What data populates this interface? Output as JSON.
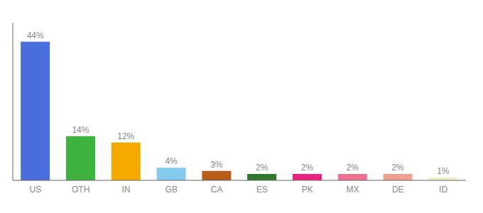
{
  "chart_data": {
    "type": "bar",
    "categories": [
      "US",
      "OTH",
      "IN",
      "GB",
      "CA",
      "ES",
      "PK",
      "MX",
      "DE",
      "ID"
    ],
    "values": [
      44,
      14,
      12,
      4,
      3,
      2,
      2,
      2,
      2,
      1
    ],
    "value_labels": [
      "44%",
      "14%",
      "12%",
      "4%",
      "3%",
      "2%",
      "2%",
      "2%",
      "2%",
      "1%"
    ],
    "data_labels": true,
    "colors": [
      "#4a6fdc",
      "#3db33d",
      "#f5a800",
      "#85c8f0",
      "#b85c1a",
      "#2d7a2d",
      "#f02080",
      "#f07090",
      "#f0a090",
      "#f0f0d0"
    ],
    "ylim": [
      0,
      50
    ],
    "tick_labels": "x",
    "grid": false
  }
}
